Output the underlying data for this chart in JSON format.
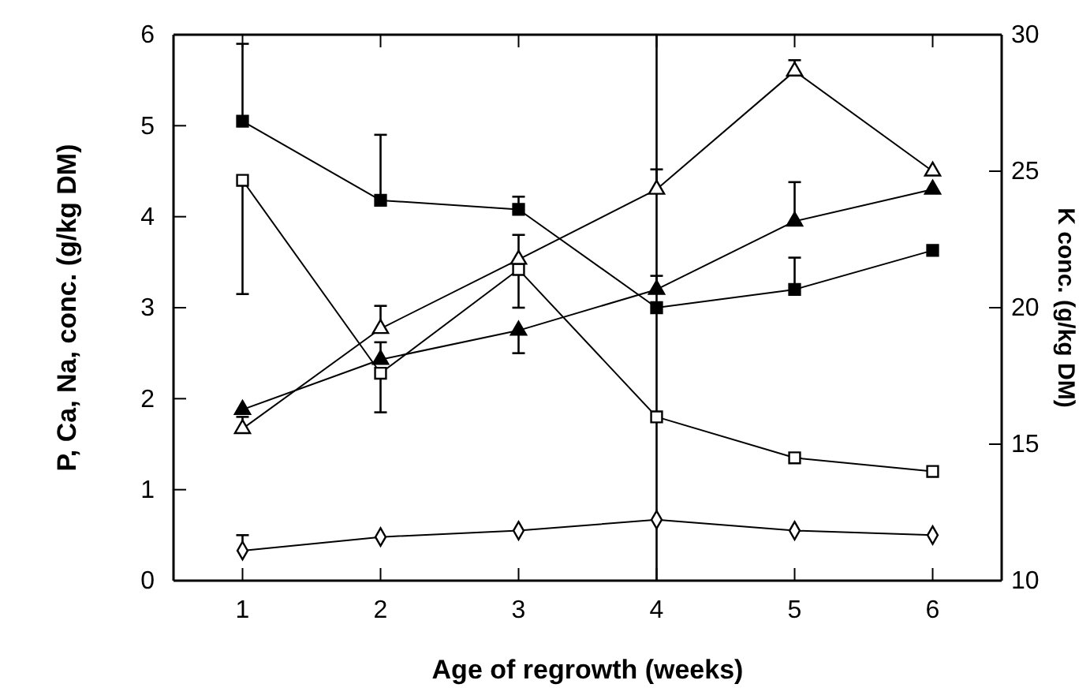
{
  "chart_data": {
    "type": "line",
    "xlabel": "Age of regrowth (weeks)",
    "ylabel": "P, Ca, Na, conc. (g/kg DM)",
    "y2label": "K conc. (g/kg DM)",
    "x": [
      1,
      2,
      3,
      4,
      5,
      6
    ],
    "xlim": [
      0.5,
      6.5
    ],
    "xticks": [
      1,
      2,
      3,
      4,
      5,
      6
    ],
    "ylim": [
      0,
      6
    ],
    "yticks": [
      0,
      1,
      2,
      3,
      4,
      5,
      6
    ],
    "y2lim": [
      10,
      30
    ],
    "y2ticks": [
      10,
      15,
      20,
      25,
      30
    ],
    "grid": false,
    "line_style": "solid",
    "series": [
      {
        "color": "#000000",
        "marker": "square",
        "values": [
          5.05,
          4.18,
          4.08,
          3.0,
          3.2,
          3.63
        ],
        "errors": [
          [
            5.05,
            5.9
          ],
          [
            4.18,
            4.9
          ],
          [
            4.08,
            4.22
          ],
          null,
          [
            3.2,
            3.55
          ],
          null
        ]
      },
      {
        "color": "#ffffff",
        "marker": "square",
        "values": [
          4.4,
          2.28,
          3.42,
          1.8,
          1.35,
          1.2
        ],
        "errors": [
          [
            3.15,
            4.4
          ],
          [
            1.85,
            2.28
          ],
          [
            3.0,
            3.42
          ],
          null,
          null,
          null
        ]
      },
      {
        "color": "#000000",
        "marker": "triangle",
        "values": [
          1.88,
          2.43,
          2.75,
          3.2,
          3.95,
          4.3
        ],
        "errors": [
          null,
          [
            2.43,
            2.62
          ],
          [
            2.5,
            2.75
          ],
          [
            3.2,
            3.35
          ],
          [
            3.95,
            4.38
          ],
          null
        ]
      },
      {
        "color": "#ffffff",
        "marker": "triangle",
        "values": [
          1.67,
          2.77,
          3.53,
          4.3,
          5.6,
          4.5
        ],
        "errors": [
          [
            1.67,
            1.8
          ],
          [
            2.77,
            3.02
          ],
          [
            3.53,
            3.8
          ],
          [
            4.3,
            4.52
          ],
          [
            5.6,
            5.72
          ],
          null
        ]
      },
      {
        "color": "#ffffff",
        "marker": "diamond",
        "values": [
          0.33,
          0.48,
          0.55,
          0.67,
          0.55,
          0.5
        ],
        "errors": [
          [
            0.33,
            0.5
          ],
          null,
          null,
          null,
          null,
          null
        ]
      }
    ],
    "ref_lines": [
      {
        "axis": "x",
        "value": 4,
        "color": "#000000"
      }
    ]
  }
}
